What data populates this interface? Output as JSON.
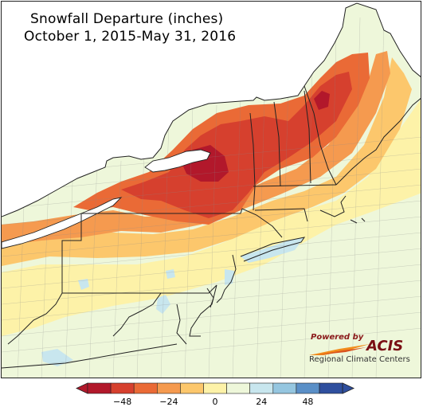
{
  "title": {
    "line1": "Snowfall Departure (inches)",
    "line2": "October 1, 2015-May 31, 2016"
  },
  "map": {
    "region": "Northeast US",
    "variable": "Snowfall Departure",
    "units": "inches",
    "period": "October 1, 2015-May 31, 2016",
    "water_color": "#ffffff",
    "county_line_color": "#8a8a8a",
    "state_line_color": "#222222"
  },
  "legend": {
    "colors": [
      "#b2182b",
      "#d6402e",
      "#ea6a36",
      "#f59a4f",
      "#fcc76c",
      "#fdf2a8",
      "#eef7da",
      "#c8e6ee",
      "#95c6e0",
      "#5a8fc7",
      "#2f4f9e"
    ],
    "tick_labels": [
      "−48",
      "−24",
      "0",
      "24",
      "48"
    ],
    "extend": "both"
  },
  "logo": {
    "powered_by": "Powered by",
    "name": "ACIS",
    "subtitle": "Regional Climate Centers"
  }
}
